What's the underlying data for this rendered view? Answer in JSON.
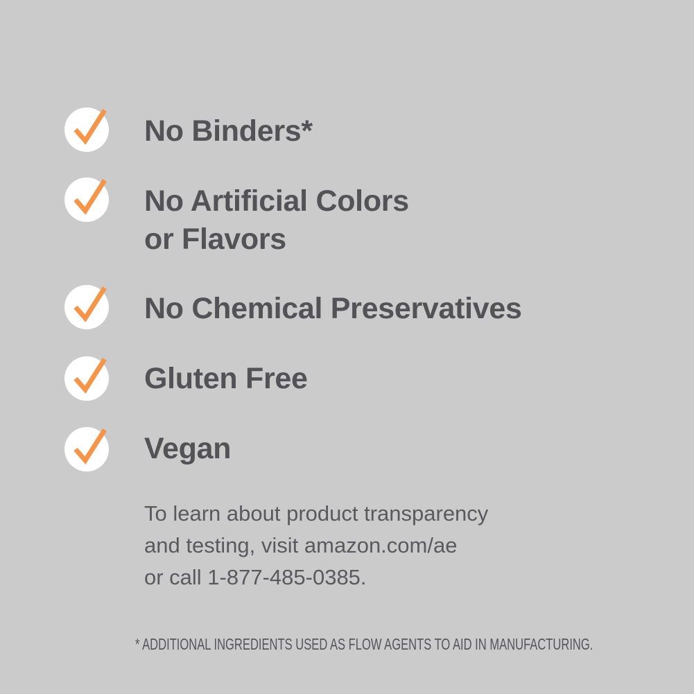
{
  "colors": {
    "background": "#cbcbcb",
    "text": "#525257",
    "check": "#f5954a",
    "circle": "#ffffff"
  },
  "features": [
    {
      "icon": "check-icon",
      "lines": [
        "No Binders*"
      ]
    },
    {
      "icon": "check-icon",
      "lines": [
        "No Artificial Colors",
        "or Flavors"
      ]
    },
    {
      "icon": "check-icon",
      "lines": [
        "No Chemical Preservatives"
      ]
    },
    {
      "icon": "check-icon",
      "lines": [
        "Gluten Free"
      ]
    },
    {
      "icon": "check-icon",
      "lines": [
        "Vegan"
      ]
    }
  ],
  "info": [
    "To learn about product transparency",
    "and testing, visit amazon.com/ae",
    "or call 1-877-485-0385."
  ],
  "footnote": "* ADDITIONAL INGREDIENTS USED AS FLOW AGENTS TO AID IN MANUFACTURING."
}
